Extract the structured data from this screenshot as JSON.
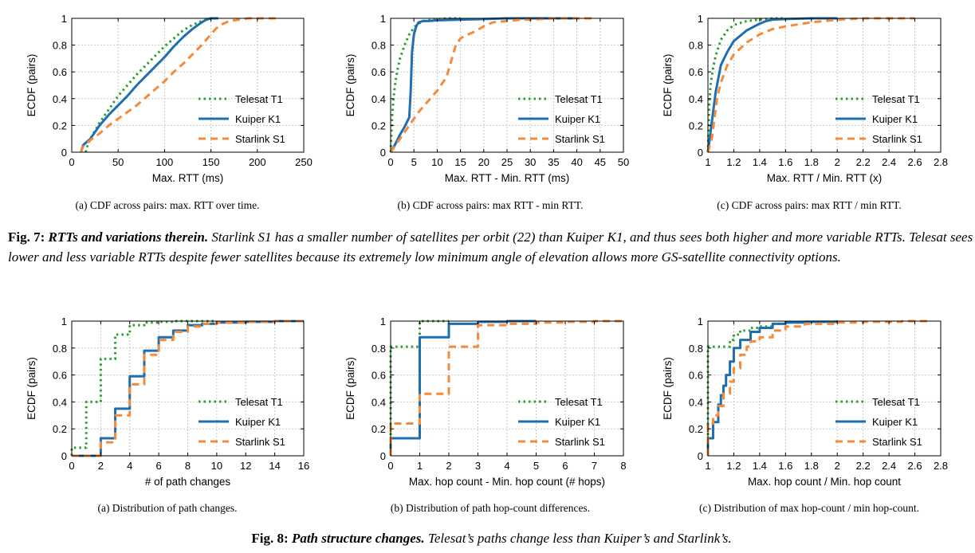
{
  "colors": {
    "telesat": "#2ca02c",
    "kuiper": "#1f6fb0",
    "starlink": "#f58a3a",
    "grid": "#c8c8c8"
  },
  "legend": {
    "telesat": "Telesat T1",
    "kuiper": "Kuiper K1",
    "starlink": "Starlink S1"
  },
  "panels": {
    "fig7a": {
      "caption": "(a)  CDF across pairs: max. RTT over time."
    },
    "fig7b": {
      "caption": "(b)  CDF across pairs: max RTT - min RTT."
    },
    "fig7c": {
      "caption": "(c)  CDF across pairs: max RTT / min RTT."
    },
    "fig8a": {
      "caption": "(a)  Distribution of path changes."
    },
    "fig8b": {
      "caption": "(b)  Distribution of path hop-count differences."
    },
    "fig8c": {
      "caption": "(c)  Distribution of max hop-count / min hop-count."
    }
  },
  "fig7": {
    "label": "Fig. 7: ",
    "title": "RTTs and variations therein.",
    "text": " Starlink S1 has a smaller number of satellites per orbit (22) than Kuiper K1, and thus sees both higher and more variable RTTs. Telesat sees lower and less variable RTTs despite fewer satellites because its extremely low minimum angle of elevation allows more GS-satellite connectivity options."
  },
  "fig8": {
    "label": "Fig. 8: ",
    "title": "Path structure changes.",
    "text": " Telesat’s paths change less than Kuiper’s and Starlink’s."
  },
  "chart_data": [
    {
      "id": "fig7a",
      "type": "line",
      "step": false,
      "xlabel": "Max. RTT (ms)",
      "ylabel": "ECDF (pairs)",
      "xlim": [
        0,
        250
      ],
      "ylim": [
        0,
        1
      ],
      "xticks": [
        0,
        50,
        100,
        150,
        200,
        250
      ],
      "xtick_labels": [
        "0",
        "50",
        "100",
        "150",
        "200",
        "250"
      ],
      "yticks": [
        0,
        0.2,
        0.4,
        0.6,
        0.8,
        1
      ],
      "ytick_labels": [
        "0",
        "0.2",
        "0.4",
        "0.6",
        "0.8",
        "1"
      ],
      "grid": true,
      "legend_position": "right",
      "series": [
        {
          "name": "Telesat T1",
          "key": "telesat",
          "x": [
            15,
            17,
            20,
            25,
            30,
            40,
            50,
            60,
            70,
            80,
            90,
            100,
            110,
            120,
            130,
            140,
            150
          ],
          "y": [
            0,
            0.05,
            0.1,
            0.16,
            0.22,
            0.32,
            0.42,
            0.5,
            0.58,
            0.65,
            0.72,
            0.79,
            0.85,
            0.91,
            0.95,
            0.98,
            1
          ]
        },
        {
          "name": "Kuiper K1",
          "key": "kuiper",
          "x": [
            10,
            12,
            15,
            20,
            25,
            30,
            40,
            50,
            60,
            70,
            80,
            90,
            100,
            110,
            120,
            130,
            140,
            145,
            150,
            158
          ],
          "y": [
            0,
            0.05,
            0.07,
            0.1,
            0.15,
            0.2,
            0.28,
            0.35,
            0.42,
            0.5,
            0.57,
            0.64,
            0.71,
            0.79,
            0.86,
            0.92,
            0.97,
            0.99,
            1,
            1
          ]
        },
        {
          "name": "Starlink S1",
          "key": "starlink",
          "x": [
            10,
            12,
            15,
            20,
            30,
            40,
            50,
            60,
            70,
            80,
            90,
            100,
            110,
            120,
            130,
            140,
            150,
            155,
            160,
            170,
            180,
            190,
            200,
            220
          ],
          "y": [
            0,
            0.04,
            0.06,
            0.09,
            0.14,
            0.2,
            0.25,
            0.3,
            0.35,
            0.41,
            0.47,
            0.53,
            0.6,
            0.66,
            0.73,
            0.8,
            0.88,
            0.92,
            0.95,
            0.98,
            0.99,
            1,
            1,
            1
          ]
        }
      ]
    },
    {
      "id": "fig7b",
      "type": "line",
      "step": false,
      "xlabel": "Max. RTT - Min. RTT (ms)",
      "ylabel": "ECDF (pairs)",
      "xlim": [
        0,
        50
      ],
      "ylim": [
        0,
        1
      ],
      "xticks": [
        0,
        5,
        10,
        15,
        20,
        25,
        30,
        35,
        40,
        45,
        50
      ],
      "xtick_labels": [
        "0",
        "5",
        "10",
        "15",
        "20",
        "25",
        "30",
        "35",
        "40",
        "45",
        "50"
      ],
      "yticks": [
        0,
        0.2,
        0.4,
        0.6,
        0.8,
        1
      ],
      "ytick_labels": [
        "0",
        "0.2",
        "0.4",
        "0.6",
        "0.8",
        "1"
      ],
      "grid": true,
      "legend_position": "right",
      "series": [
        {
          "name": "Telesat T1",
          "key": "telesat",
          "x": [
            0,
            0.3,
            0.6,
            1,
            1.5,
            2,
            3,
            4,
            5,
            6,
            7,
            9,
            12,
            15
          ],
          "y": [
            0,
            0.25,
            0.4,
            0.52,
            0.62,
            0.7,
            0.8,
            0.88,
            0.93,
            0.96,
            0.98,
            0.99,
            1,
            1
          ]
        },
        {
          "name": "Kuiper K1",
          "key": "kuiper",
          "x": [
            0,
            1,
            2,
            3,
            4,
            4.3,
            4.6,
            5,
            5.5,
            6,
            7,
            8,
            10,
            15,
            20,
            25,
            30,
            35,
            40
          ],
          "y": [
            0,
            0.06,
            0.13,
            0.19,
            0.26,
            0.45,
            0.75,
            0.88,
            0.94,
            0.97,
            0.98,
            0.98,
            0.985,
            0.99,
            0.995,
            1,
            1,
            1,
            1
          ]
        },
        {
          "name": "Starlink S1",
          "key": "starlink",
          "x": [
            0,
            2,
            4,
            6,
            8,
            10,
            12,
            13,
            14,
            15,
            16,
            18,
            20,
            22,
            25,
            28,
            30,
            35,
            40,
            44
          ],
          "y": [
            0,
            0.1,
            0.2,
            0.3,
            0.38,
            0.46,
            0.56,
            0.68,
            0.8,
            0.85,
            0.87,
            0.9,
            0.94,
            0.97,
            0.98,
            0.99,
            0.99,
            1,
            1,
            1
          ]
        }
      ]
    },
    {
      "id": "fig7c",
      "type": "line",
      "step": false,
      "xlabel": "Max. RTT / Min. RTT (x)",
      "ylabel": "ECDF (pairs)",
      "xlim": [
        1,
        2.8
      ],
      "ylim": [
        0,
        1
      ],
      "xticks": [
        1,
        1.2,
        1.4,
        1.6,
        1.8,
        2,
        2.2,
        2.4,
        2.6,
        2.8
      ],
      "xtick_labels": [
        "1",
        "1.2",
        "1.4",
        "1.6",
        "1.8",
        "2",
        "2.2",
        "2.4",
        "2.6",
        "2.8"
      ],
      "yticks": [
        0,
        0.2,
        0.4,
        0.6,
        0.8,
        1
      ],
      "ytick_labels": [
        "0",
        "0.2",
        "0.4",
        "0.6",
        "0.8",
        "1"
      ],
      "grid": true,
      "legend_position": "right",
      "series": [
        {
          "name": "Telesat T1",
          "key": "telesat",
          "x": [
            1,
            1.01,
            1.02,
            1.04,
            1.06,
            1.08,
            1.1,
            1.15,
            1.2,
            1.3,
            1.4,
            1.5,
            1.6
          ],
          "y": [
            0,
            0.35,
            0.5,
            0.63,
            0.72,
            0.78,
            0.84,
            0.91,
            0.95,
            0.98,
            0.99,
            1,
            1
          ]
        },
        {
          "name": "Kuiper K1",
          "key": "kuiper",
          "x": [
            1,
            1.02,
            1.04,
            1.06,
            1.08,
            1.1,
            1.15,
            1.2,
            1.3,
            1.4,
            1.45,
            1.5,
            1.6,
            1.8,
            2
          ],
          "y": [
            0,
            0.15,
            0.3,
            0.45,
            0.55,
            0.65,
            0.75,
            0.83,
            0.91,
            0.96,
            0.98,
            0.99,
            0.995,
            1,
            1
          ]
        },
        {
          "name": "Starlink S1",
          "key": "starlink",
          "x": [
            1,
            1.03,
            1.05,
            1.07,
            1.1,
            1.15,
            1.2,
            1.3,
            1.4,
            1.5,
            1.6,
            1.8,
            2,
            2.2,
            2.4,
            2.6
          ],
          "y": [
            0,
            0.1,
            0.25,
            0.4,
            0.52,
            0.65,
            0.73,
            0.82,
            0.88,
            0.92,
            0.94,
            0.97,
            0.99,
            1,
            1,
            1
          ]
        }
      ]
    },
    {
      "id": "fig8a",
      "type": "line",
      "step": true,
      "xlabel": "# of path changes",
      "ylabel": "ECDF (pairs)",
      "xlim": [
        0,
        16
      ],
      "ylim": [
        0,
        1
      ],
      "xticks": [
        0,
        2,
        4,
        6,
        8,
        10,
        12,
        14,
        16
      ],
      "xtick_labels": [
        "0",
        "2",
        "4",
        "6",
        "8",
        "10",
        "12",
        "14",
        "16"
      ],
      "yticks": [
        0,
        0.2,
        0.4,
        0.6,
        0.8,
        1
      ],
      "ytick_labels": [
        "0",
        "0.2",
        "0.4",
        "0.6",
        "0.8",
        "1"
      ],
      "grid": true,
      "legend_position": "right",
      "series": [
        {
          "name": "Telesat T1",
          "key": "telesat",
          "x": [
            0,
            1,
            2,
            3,
            4,
            5,
            6,
            7,
            8,
            10
          ],
          "y": [
            0.06,
            0.4,
            0.72,
            0.9,
            0.97,
            0.99,
            0.995,
            1,
            1,
            1
          ]
        },
        {
          "name": "Kuiper K1",
          "key": "kuiper",
          "x": [
            0,
            2,
            3,
            4,
            5,
            6,
            7,
            8,
            9,
            10,
            12,
            14,
            16
          ],
          "y": [
            0,
            0.13,
            0.35,
            0.59,
            0.78,
            0.88,
            0.93,
            0.97,
            0.98,
            0.99,
            0.995,
            1,
            1
          ]
        },
        {
          "name": "Starlink S1",
          "key": "starlink",
          "x": [
            0,
            2,
            3,
            4,
            5,
            6,
            7,
            8,
            9,
            10,
            12,
            14,
            16
          ],
          "y": [
            0,
            0.1,
            0.3,
            0.53,
            0.75,
            0.86,
            0.92,
            0.96,
            0.98,
            0.99,
            0.995,
            1,
            1
          ]
        }
      ]
    },
    {
      "id": "fig8b",
      "type": "line",
      "step": true,
      "xlabel": "Max. hop count - Min. hop count (# hops)",
      "ylabel": "ECDF (pairs)",
      "xlim": [
        0,
        8
      ],
      "ylim": [
        0,
        1
      ],
      "xticks": [
        0,
        1,
        2,
        3,
        4,
        5,
        6,
        7,
        8
      ],
      "xtick_labels": [
        "0",
        "1",
        "2",
        "3",
        "4",
        "5",
        "6",
        "7",
        "8"
      ],
      "yticks": [
        0,
        0.2,
        0.4,
        0.6,
        0.8,
        1
      ],
      "ytick_labels": [
        "0",
        "0.2",
        "0.4",
        "0.6",
        "0.8",
        "1"
      ],
      "grid": true,
      "legend_position": "right",
      "series": [
        {
          "name": "Telesat T1",
          "key": "telesat",
          "x": [
            0,
            1,
            2
          ],
          "y": [
            0.81,
            1,
            1
          ]
        },
        {
          "name": "Kuiper K1",
          "key": "kuiper",
          "x": [
            0,
            1,
            2,
            3,
            4,
            5
          ],
          "y": [
            0.13,
            0.88,
            0.98,
            0.995,
            1,
            1
          ]
        },
        {
          "name": "Starlink S1",
          "key": "starlink",
          "x": [
            0,
            1,
            2,
            3,
            4,
            5,
            6,
            7,
            8
          ],
          "y": [
            0.24,
            0.46,
            0.81,
            0.97,
            0.98,
            0.99,
            0.995,
            1,
            1
          ]
        }
      ]
    },
    {
      "id": "fig8c",
      "type": "line",
      "step": true,
      "xlabel": "Max. hop count / Min. hop count",
      "ylabel": "ECDF (pairs)",
      "xlim": [
        1,
        2.8
      ],
      "ylim": [
        0,
        1
      ],
      "xticks": [
        1,
        1.2,
        1.4,
        1.6,
        1.8,
        2,
        2.2,
        2.4,
        2.6,
        2.8
      ],
      "xtick_labels": [
        "1",
        "1.2",
        "1.4",
        "1.6",
        "1.8",
        "2",
        "2.2",
        "2.4",
        "2.6",
        "2.8"
      ],
      "yticks": [
        0,
        0.2,
        0.4,
        0.6,
        0.8,
        1
      ],
      "ytick_labels": [
        "0",
        "0.2",
        "0.4",
        "0.6",
        "0.8",
        "1"
      ],
      "grid": true,
      "legend_position": "right",
      "series": [
        {
          "name": "Telesat T1",
          "key": "telesat",
          "x": [
            1,
            1.17,
            1.2,
            1.25,
            1.33,
            1.4,
            1.5,
            1.6,
            1.75,
            2
          ],
          "y": [
            0.81,
            0.86,
            0.9,
            0.93,
            0.95,
            0.96,
            0.98,
            0.99,
            0.995,
            1
          ]
        },
        {
          "name": "Kuiper K1",
          "key": "kuiper",
          "x": [
            1,
            1.04,
            1.08,
            1.1,
            1.12,
            1.14,
            1.17,
            1.2,
            1.25,
            1.33,
            1.4,
            1.5,
            1.6,
            1.75,
            2
          ],
          "y": [
            0.13,
            0.25,
            0.38,
            0.45,
            0.52,
            0.6,
            0.7,
            0.8,
            0.86,
            0.92,
            0.95,
            0.98,
            0.99,
            0.995,
            1
          ]
        },
        {
          "name": "Starlink S1",
          "key": "starlink",
          "x": [
            1,
            1.04,
            1.08,
            1.12,
            1.17,
            1.2,
            1.25,
            1.3,
            1.33,
            1.4,
            1.5,
            1.6,
            1.75,
            2,
            2.2,
            2.5,
            2.7
          ],
          "y": [
            0.24,
            0.3,
            0.37,
            0.46,
            0.55,
            0.65,
            0.75,
            0.81,
            0.85,
            0.88,
            0.93,
            0.96,
            0.98,
            0.99,
            0.995,
            1,
            1
          ]
        }
      ]
    }
  ]
}
